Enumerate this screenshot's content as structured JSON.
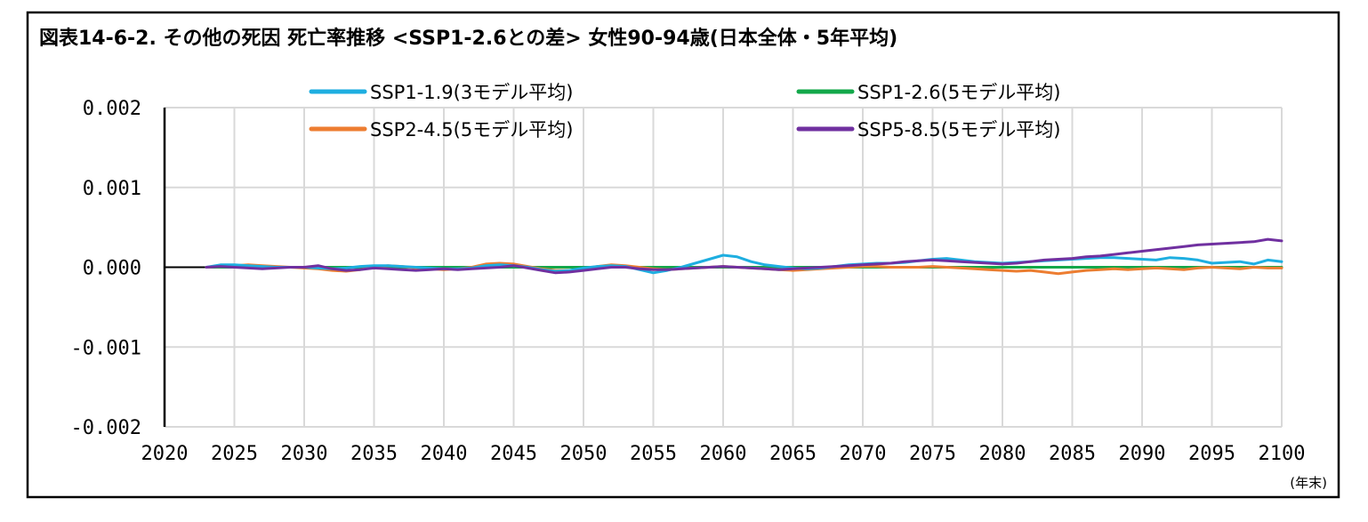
{
  "chart_data": {
    "type": "line",
    "title": "図表14-6-2. その他の死因 死亡率推移 <SSP1-2.6との差> 女性90-94歳(日本全体・5年平均)",
    "x_unit_label": "(年末)",
    "xlim": [
      2020,
      2100
    ],
    "ylim": [
      -0.002,
      0.002
    ],
    "x_ticks": [
      2020,
      2025,
      2030,
      2035,
      2040,
      2045,
      2050,
      2055,
      2060,
      2065,
      2070,
      2075,
      2080,
      2085,
      2090,
      2095,
      2100
    ],
    "y_ticks": [
      {
        "value": 0.002,
        "label": "0.002"
      },
      {
        "value": 0.001,
        "label": "0.001"
      },
      {
        "value": 0.0,
        "label": "0.000"
      },
      {
        "value": -0.001,
        "label": "-0.001"
      },
      {
        "value": -0.002,
        "label": "-0.002"
      }
    ],
    "grid": true,
    "legend_position": "top",
    "series": [
      {
        "name": "SSP1-1.9(3モデル平均)",
        "color": "#1EAEE0",
        "x": [
          2023,
          2024,
          2025,
          2026,
          2027,
          2028,
          2029,
          2030,
          2031,
          2032,
          2033,
          2034,
          2035,
          2036,
          2037,
          2038,
          2039,
          2040,
          2041,
          2042,
          2043,
          2044,
          2045,
          2046,
          2047,
          2048,
          2049,
          2050,
          2051,
          2052,
          2053,
          2054,
          2055,
          2056,
          2057,
          2058,
          2059,
          2060,
          2061,
          2062,
          2063,
          2064,
          2065,
          2066,
          2067,
          2068,
          2069,
          2070,
          2071,
          2072,
          2073,
          2074,
          2075,
          2076,
          2077,
          2078,
          2079,
          2080,
          2081,
          2082,
          2083,
          2084,
          2085,
          2086,
          2087,
          2088,
          2089,
          2090,
          2091,
          2092,
          2093,
          2094,
          2095,
          2096,
          2097,
          2098,
          2099,
          2100
        ],
        "y": [
          0.0,
          3e-05,
          3e-05,
          2e-05,
          1e-05,
          0.0,
          0.0,
          0.0,
          -1e-05,
          -2e-05,
          -1e-05,
          1e-05,
          2e-05,
          2e-05,
          1e-05,
          0.0,
          -1e-05,
          -2e-05,
          -2e-05,
          -1e-05,
          2e-05,
          3e-05,
          2e-05,
          0.0,
          -3e-05,
          -5e-05,
          -4e-05,
          -1e-05,
          1e-05,
          2e-05,
          1e-05,
          -3e-05,
          -7e-05,
          -4e-05,
          0.0,
          5e-05,
          0.0001,
          0.00015,
          0.00013,
          7e-05,
          3e-05,
          1e-05,
          -1e-05,
          -2e-05,
          -1e-05,
          1e-05,
          3e-05,
          4e-05,
          5e-05,
          5e-05,
          6e-05,
          8e-05,
          0.0001,
          0.00011,
          9e-05,
          7e-05,
          6e-05,
          5e-05,
          6e-05,
          7e-05,
          8e-05,
          9e-05,
          0.0001,
          0.00011,
          0.00012,
          0.00012,
          0.00011,
          0.0001,
          9e-05,
          0.00012,
          0.00011,
          9e-05,
          5e-05,
          6e-05,
          7e-05,
          4e-05,
          9e-05,
          7e-05
        ]
      },
      {
        "name": "SSP1-2.6(5モデル平均)",
        "color": "#13A84A",
        "x": [
          2023,
          2100
        ],
        "y": [
          0.0,
          0.0
        ]
      },
      {
        "name": "SSP2-4.5(5モデル平均)",
        "color": "#ED7D31",
        "x": [
          2023,
          2024,
          2025,
          2026,
          2027,
          2028,
          2029,
          2030,
          2031,
          2032,
          2033,
          2034,
          2035,
          2036,
          2037,
          2038,
          2039,
          2040,
          2041,
          2042,
          2043,
          2044,
          2045,
          2046,
          2047,
          2048,
          2049,
          2050,
          2051,
          2052,
          2053,
          2054,
          2055,
          2056,
          2057,
          2058,
          2059,
          2060,
          2061,
          2062,
          2063,
          2064,
          2065,
          2066,
          2067,
          2068,
          2069,
          2070,
          2071,
          2072,
          2073,
          2074,
          2075,
          2076,
          2077,
          2078,
          2079,
          2080,
          2081,
          2082,
          2083,
          2084,
          2085,
          2086,
          2087,
          2088,
          2089,
          2090,
          2091,
          2092,
          2093,
          2094,
          2095,
          2096,
          2097,
          2098,
          2099,
          2100
        ],
        "y": [
          0.0,
          1e-05,
          2e-05,
          3e-05,
          2e-05,
          1e-05,
          0.0,
          -1e-05,
          -2e-05,
          -4e-05,
          -5e-05,
          -3e-05,
          0.0,
          2e-05,
          1e-05,
          -1e-05,
          -2e-05,
          -3e-05,
          -2e-05,
          0.0,
          4e-05,
          5e-05,
          4e-05,
          1e-05,
          -2e-05,
          -4e-05,
          -4e-05,
          -2e-05,
          1e-05,
          3e-05,
          2e-05,
          0.0,
          -2e-05,
          -3e-05,
          -2e-05,
          -1e-05,
          0.0,
          1e-05,
          0.0,
          -1e-05,
          -2e-05,
          -3e-05,
          -4e-05,
          -3e-05,
          -2e-05,
          -1e-05,
          0.0,
          1e-05,
          1e-05,
          0.0,
          0.0,
          0.0,
          1e-05,
          0.0,
          -1e-05,
          -2e-05,
          -3e-05,
          -4e-05,
          -5e-05,
          -4e-05,
          -6e-05,
          -8e-05,
          -6e-05,
          -4e-05,
          -3e-05,
          -2e-05,
          -3e-05,
          -2e-05,
          -1e-05,
          -2e-05,
          -3e-05,
          -1e-05,
          0.0,
          -1e-05,
          -2e-05,
          0.0,
          -1e-05,
          -1e-05
        ]
      },
      {
        "name": "SSP5-8.5(5モデル平均)",
        "color": "#7030A0",
        "x": [
          2023,
          2024,
          2025,
          2026,
          2027,
          2028,
          2029,
          2030,
          2031,
          2032,
          2033,
          2034,
          2035,
          2036,
          2037,
          2038,
          2039,
          2040,
          2041,
          2042,
          2043,
          2044,
          2045,
          2046,
          2047,
          2048,
          2049,
          2050,
          2051,
          2052,
          2053,
          2054,
          2055,
          2056,
          2057,
          2058,
          2059,
          2060,
          2061,
          2062,
          2063,
          2064,
          2065,
          2066,
          2067,
          2068,
          2069,
          2070,
          2071,
          2072,
          2073,
          2074,
          2075,
          2076,
          2077,
          2078,
          2079,
          2080,
          2081,
          2082,
          2083,
          2084,
          2085,
          2086,
          2087,
          2088,
          2089,
          2090,
          2091,
          2092,
          2093,
          2094,
          2095,
          2096,
          2097,
          2098,
          2099,
          2100
        ],
        "y": [
          0.0,
          1e-05,
          0.0,
          -1e-05,
          -2e-05,
          -1e-05,
          0.0,
          0.0,
          2e-05,
          -2e-05,
          -4e-05,
          -3e-05,
          -1e-05,
          -2e-05,
          -3e-05,
          -4e-05,
          -3e-05,
          -2e-05,
          -3e-05,
          -2e-05,
          -1e-05,
          0.0,
          2e-05,
          -1e-05,
          -4e-05,
          -7e-05,
          -6e-05,
          -4e-05,
          -2e-05,
          0.0,
          0.0,
          -2e-05,
          -3e-05,
          -3e-05,
          -2e-05,
          -1e-05,
          0.0,
          1e-05,
          0.0,
          -1e-05,
          -2e-05,
          -3e-05,
          -2e-05,
          -1e-05,
          0.0,
          1e-05,
          2e-05,
          3e-05,
          4e-05,
          5e-05,
          7e-05,
          8e-05,
          9e-05,
          8e-05,
          7e-05,
          6e-05,
          5e-05,
          4e-05,
          5e-05,
          7e-05,
          9e-05,
          0.0001,
          0.00011,
          0.00013,
          0.00014,
          0.00016,
          0.00018,
          0.0002,
          0.00022,
          0.00024,
          0.00026,
          0.00028,
          0.00029,
          0.0003,
          0.00031,
          0.00032,
          0.00035,
          0.00033
        ]
      }
    ]
  }
}
